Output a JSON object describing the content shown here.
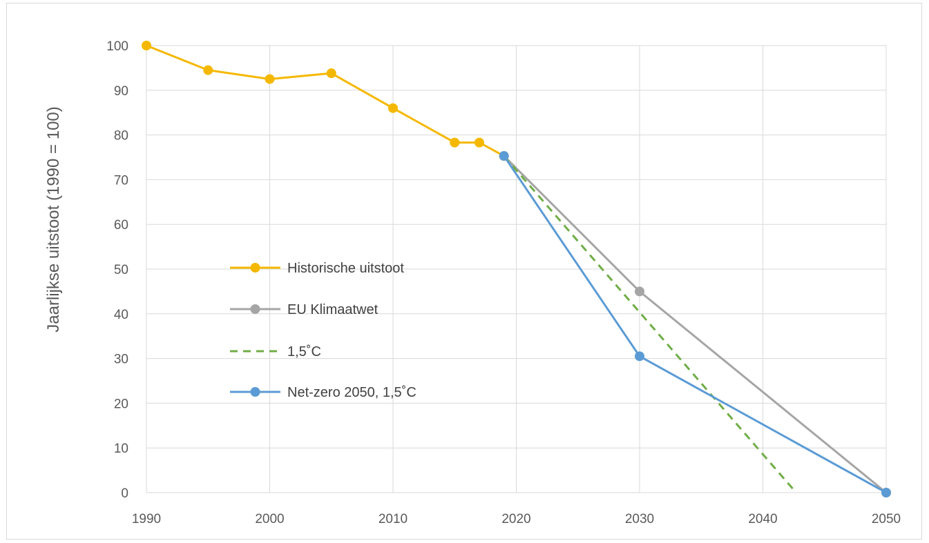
{
  "chart_data": {
    "type": "line",
    "ylabel": "Jaarlijkse uitstoot (1990 = 100)",
    "xlabel": "",
    "xlim": [
      1990,
      2050
    ],
    "ylim": [
      0,
      100
    ],
    "x_ticks": [
      1990,
      2000,
      2010,
      2020,
      2030,
      2040,
      2050
    ],
    "y_ticks": [
      0,
      10,
      20,
      30,
      40,
      50,
      60,
      70,
      80,
      90,
      100
    ],
    "grid": true,
    "legend_position": "left-center",
    "series": [
      {
        "name": "Historische uitstoot",
        "color": "#f5b800",
        "style": "solid",
        "markers": true,
        "points": [
          [
            1990,
            100
          ],
          [
            1995,
            94.5
          ],
          [
            2000,
            92.5
          ],
          [
            2005,
            93.8
          ],
          [
            2010,
            86
          ],
          [
            2015,
            78.3
          ],
          [
            2017,
            78.3
          ],
          [
            2019,
            75.3
          ]
        ]
      },
      {
        "name": "EU Klimaatwet",
        "color": "#a5a5a5",
        "style": "solid",
        "markers": true,
        "points": [
          [
            2019,
            75.3
          ],
          [
            2030,
            45
          ],
          [
            2050,
            0
          ]
        ]
      },
      {
        "name": "1,5˚C",
        "color": "#70ad47",
        "style": "dashed",
        "markers": false,
        "points": [
          [
            2019,
            75.3
          ],
          [
            2042.7,
            0
          ]
        ]
      },
      {
        "name": "Net-zero 2050, 1,5˚C",
        "color": "#5b9bd5",
        "style": "solid",
        "markers": true,
        "points": [
          [
            2019,
            75.3
          ],
          [
            2030,
            30.5
          ],
          [
            2050,
            0
          ]
        ]
      }
    ]
  }
}
